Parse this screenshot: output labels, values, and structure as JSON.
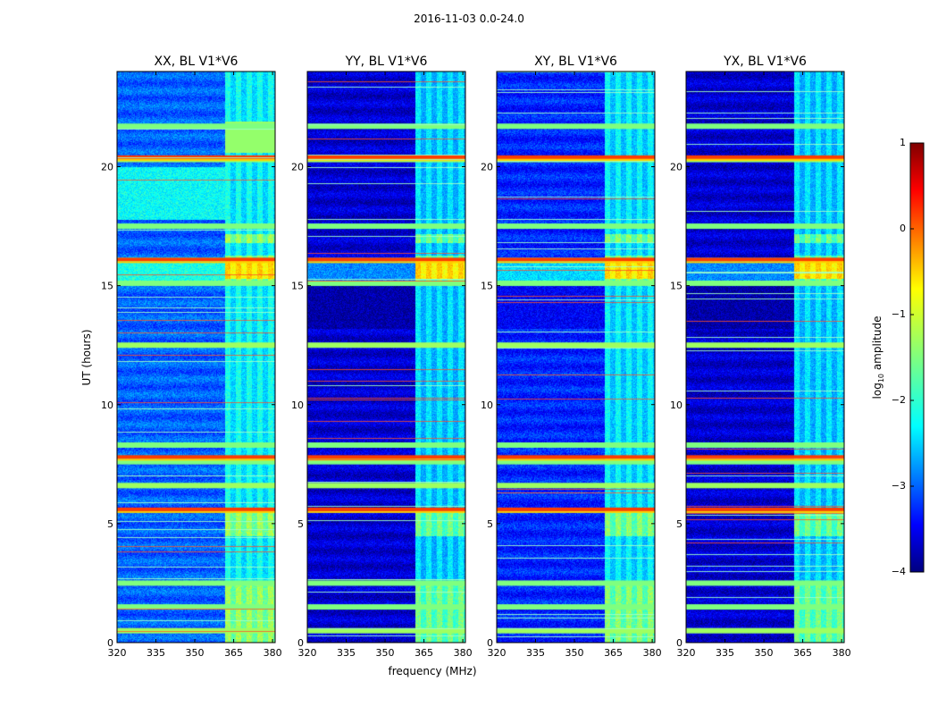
{
  "figure_title": "2016-11-03 0.0-24.0",
  "xlabel": "frequency (MHz)",
  "ylabel": "UT (hours)",
  "colorbar": {
    "label_prefix": "log",
    "label_sub": "10",
    "label_suffix": " amplitude",
    "range": [
      -4,
      1
    ],
    "ticks": [
      "1",
      "0",
      "−1",
      "−2",
      "−3",
      "−4"
    ],
    "colormap": "jet"
  },
  "chart_data": {
    "type": "heatmap",
    "xlim": [
      320,
      381
    ],
    "ylim": [
      0,
      24
    ],
    "xticks": [
      "320",
      "335",
      "350",
      "365",
      "380"
    ],
    "yticks": [
      "0",
      "5",
      "10",
      "15",
      "20"
    ],
    "panels": [
      {
        "title": "XX, BL V1*V6",
        "band_level": -1.6,
        "gap_level": -2.9,
        "active_17_20": true,
        "burst_16": "XX"
      },
      {
        "title": "YY, BL V1*V6",
        "band_level": -1.8,
        "gap_level": -3.6,
        "active_17_20": false,
        "burst_16": "YY"
      },
      {
        "title": "XY, BL V1*V6",
        "band_level": -1.7,
        "gap_level": -3.2,
        "active_17_20": false,
        "burst_16": "XY"
      },
      {
        "title": "YX, BL V1*V6",
        "band_level": -1.8,
        "gap_level": -3.6,
        "active_17_20": false,
        "burst_16": "YX"
      }
    ],
    "rfi_band_mhz": [
      361.5,
      381
    ],
    "saturated_rows_ut": [
      0.5,
      1.5,
      2.5,
      6.6,
      7.6,
      8.3,
      12.5,
      15.1,
      17.5,
      20.3,
      21.7
    ],
    "hot_rows_ut": [
      5.6,
      7.8,
      16.1,
      20.4
    ]
  }
}
